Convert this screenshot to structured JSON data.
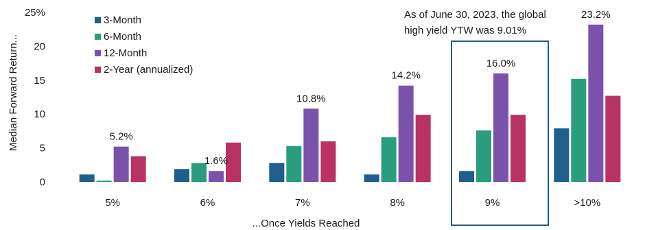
{
  "chart_data": {
    "type": "bar",
    "categories": [
      "5%",
      "6%",
      "7%",
      "8%",
      "9%",
      ">10%"
    ],
    "series": [
      {
        "name": "3-Month",
        "color": "#1f5f8b",
        "values": [
          1.1,
          1.9,
          2.8,
          1.1,
          1.6,
          7.9
        ]
      },
      {
        "name": "6-Month",
        "color": "#2a9d7f",
        "values": [
          0.2,
          2.8,
          5.3,
          6.6,
          7.6,
          15.2
        ]
      },
      {
        "name": "12-Month",
        "color": "#7b52ab",
        "values": [
          5.2,
          1.6,
          10.8,
          14.2,
          16.0,
          23.2
        ]
      },
      {
        "name": "2-Year (annualized)",
        "color": "#b83264",
        "values": [
          3.8,
          5.8,
          6.0,
          9.9,
          9.9,
          12.7
        ]
      }
    ],
    "data_labels": [
      "5.2%",
      "1.6%",
      "10.8%",
      "14.2%",
      "16.0%",
      "23.2%"
    ],
    "xlabel": "...Once Yields Reached",
    "ylabel": "Median Forward Return...",
    "ylim": [
      0,
      25
    ],
    "yticks": [
      "0",
      "5",
      "10",
      "15",
      "20",
      "25%"
    ],
    "legend_position": "top-left",
    "highlight_category": "9%",
    "annotation": {
      "line1": "As of June 30, 2023, the global",
      "line2": "high yield YTW was 9.01%"
    },
    "highlight_color": "#1f5f8b"
  }
}
